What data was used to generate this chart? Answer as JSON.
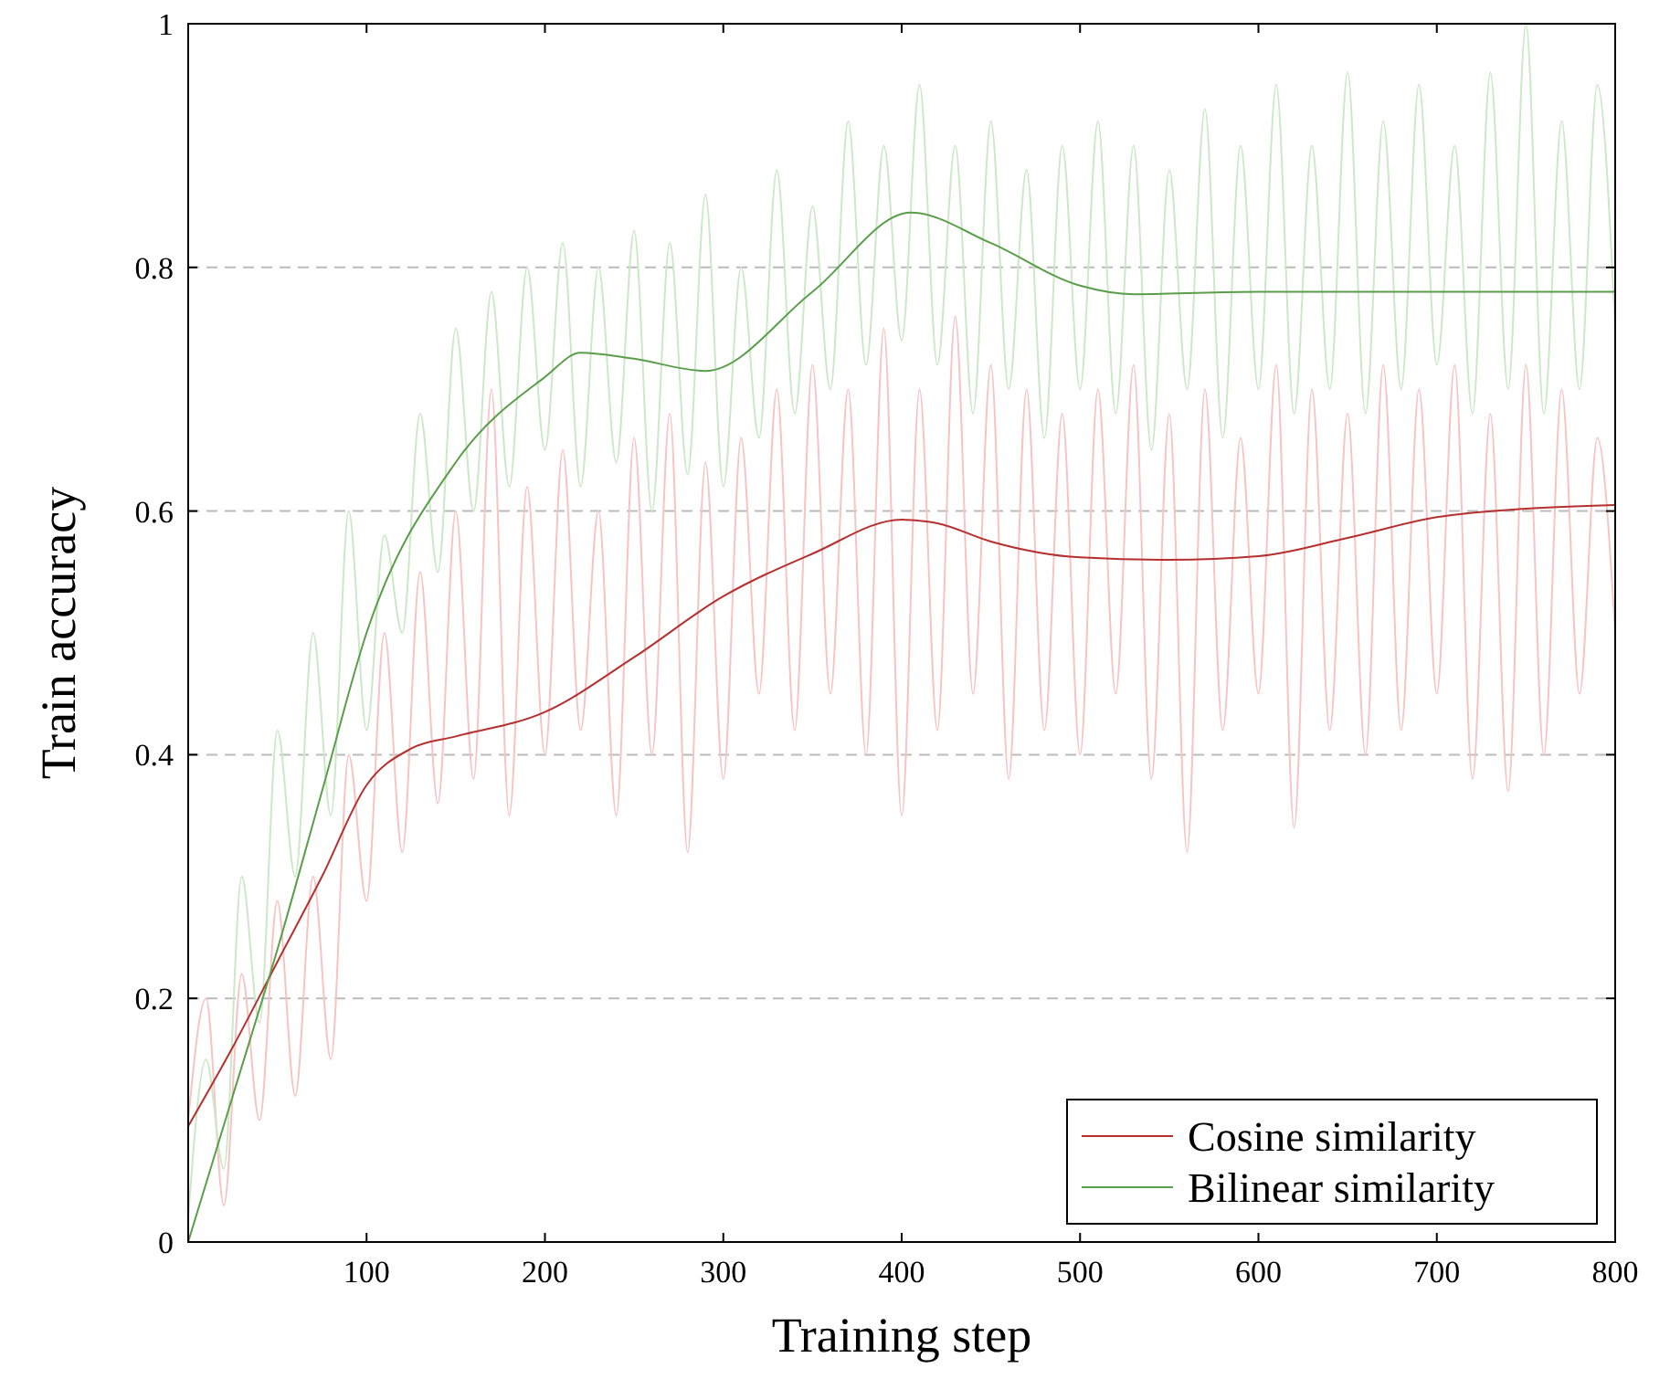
{
  "chart_data": {
    "type": "line",
    "xlabel": "Training step",
    "ylabel": "Train accuracy",
    "xlim": [
      0,
      800
    ],
    "xticks": [
      100,
      200,
      300,
      400,
      500,
      600,
      700,
      800
    ],
    "ylim": [
      0,
      1
    ],
    "yticks": [
      0,
      0.2,
      0.4,
      0.6,
      0.8,
      1
    ],
    "grid": "y",
    "legend": "bottom right",
    "marker": "none",
    "line_style": "solid",
    "x": [
      0,
      10,
      20,
      30,
      40,
      50,
      60,
      70,
      80,
      90,
      100,
      110,
      120,
      130,
      140,
      150,
      160,
      170,
      180,
      190,
      200,
      210,
      220,
      230,
      240,
      250,
      260,
      270,
      280,
      290,
      300,
      310,
      320,
      330,
      340,
      350,
      360,
      370,
      380,
      390,
      400,
      410,
      420,
      430,
      440,
      450,
      460,
      470,
      480,
      490,
      500,
      510,
      520,
      530,
      540,
      550,
      560,
      570,
      580,
      590,
      600,
      610,
      620,
      630,
      640,
      650,
      660,
      670,
      680,
      690,
      700,
      710,
      720,
      730,
      740,
      750,
      760,
      770,
      780,
      790,
      800
    ],
    "series": [
      {
        "color": "#f7c4c4",
        "values": [
          0.1,
          0.2,
          0.03,
          0.22,
          0.1,
          0.28,
          0.12,
          0.3,
          0.15,
          0.4,
          0.28,
          0.5,
          0.32,
          0.55,
          0.36,
          0.6,
          0.38,
          0.7,
          0.35,
          0.62,
          0.4,
          0.65,
          0.42,
          0.6,
          0.35,
          0.66,
          0.4,
          0.68,
          0.32,
          0.64,
          0.38,
          0.66,
          0.45,
          0.7,
          0.42,
          0.72,
          0.45,
          0.7,
          0.4,
          0.75,
          0.35,
          0.7,
          0.42,
          0.76,
          0.45,
          0.72,
          0.38,
          0.7,
          0.42,
          0.68,
          0.4,
          0.7,
          0.45,
          0.72,
          0.38,
          0.68,
          0.32,
          0.7,
          0.42,
          0.66,
          0.45,
          0.72,
          0.34,
          0.7,
          0.42,
          0.68,
          0.4,
          0.72,
          0.42,
          0.7,
          0.45,
          0.72,
          0.38,
          0.68,
          0.37,
          0.72,
          0.4,
          0.7,
          0.45,
          0.66,
          0.5
        ]
      },
      {
        "color": "#cde8c9",
        "values": [
          0.02,
          0.15,
          0.06,
          0.3,
          0.18,
          0.42,
          0.3,
          0.5,
          0.35,
          0.6,
          0.42,
          0.58,
          0.5,
          0.68,
          0.55,
          0.75,
          0.6,
          0.78,
          0.62,
          0.8,
          0.65,
          0.82,
          0.62,
          0.8,
          0.64,
          0.83,
          0.6,
          0.82,
          0.63,
          0.86,
          0.62,
          0.8,
          0.66,
          0.88,
          0.68,
          0.85,
          0.7,
          0.92,
          0.72,
          0.9,
          0.74,
          0.95,
          0.72,
          0.9,
          0.68,
          0.92,
          0.7,
          0.88,
          0.66,
          0.9,
          0.7,
          0.92,
          0.68,
          0.9,
          0.65,
          0.88,
          0.7,
          0.93,
          0.66,
          0.9,
          0.7,
          0.95,
          0.68,
          0.9,
          0.7,
          0.96,
          0.68,
          0.92,
          0.7,
          0.95,
          0.72,
          0.9,
          0.68,
          0.96,
          0.7,
          1.0,
          0.68,
          0.92,
          0.7,
          0.95,
          0.75
        ]
      },
      {
        "name": "Cosine similarity",
        "color": "#b5302f",
        "x": [
          0,
          25,
          50,
          75,
          100,
          125,
          150,
          200,
          250,
          300,
          350,
          400,
          420,
          450,
          500,
          550,
          600,
          650,
          700,
          750,
          800
        ],
        "values": [
          0.095,
          0.16,
          0.23,
          0.3,
          0.375,
          0.405,
          0.415,
          0.435,
          0.48,
          0.53,
          0.565,
          0.593,
          0.59,
          0.575,
          0.562,
          0.56,
          0.563,
          0.578,
          0.595,
          0.602,
          0.605
        ]
      },
      {
        "name": "Bilinear similarity",
        "color": "#5a9e4a",
        "x": [
          0,
          25,
          50,
          75,
          100,
          150,
          200,
          220,
          250,
          290,
          350,
          405,
          450,
          500,
          530,
          600,
          800
        ],
        "values": [
          0,
          0.12,
          0.24,
          0.37,
          0.5,
          0.64,
          0.71,
          0.73,
          0.725,
          0.715,
          0.78,
          0.845,
          0.82,
          0.785,
          0.778,
          0.78,
          0.78
        ]
      }
    ]
  }
}
